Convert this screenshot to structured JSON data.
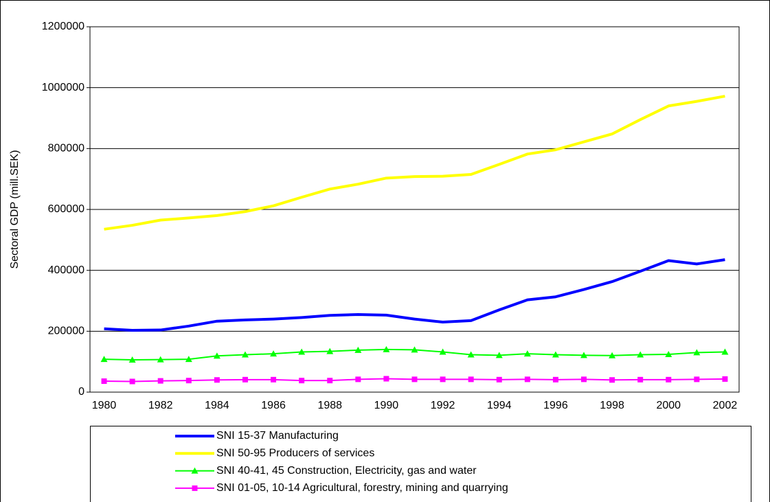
{
  "chart_data": {
    "type": "line",
    "y_label": "Sectoral GDP (mill.SEK)",
    "categories": [
      "1980",
      null,
      "1982",
      null,
      "1984",
      null,
      "1986",
      null,
      "1988",
      null,
      "1990",
      null,
      "1992",
      null,
      "1994",
      null,
      "1996",
      null,
      "1998",
      null,
      "2000",
      null,
      "2002"
    ],
    "ylim": [
      0,
      1200000
    ],
    "yticks": [
      0,
      200000,
      400000,
      600000,
      800000,
      1000000,
      1200000
    ],
    "grid": true,
    "legend": "bottom",
    "series": [
      {
        "name": "SNI 15-37 Manufacturing",
        "color": "#0000ff",
        "line_width": 4,
        "marker": null,
        "values": [
          208000,
          203000,
          204000,
          217000,
          233000,
          237000,
          240000,
          245000,
          252000,
          255000,
          253000,
          240000,
          230000,
          235000,
          270000,
          303000,
          313000,
          337000,
          363000,
          397000,
          432000,
          421000,
          435000
        ]
      },
      {
        "name": "SNI 50-95 Producers of services",
        "color": "#ffff00",
        "line_width": 4,
        "marker": null,
        "values": [
          535000,
          548000,
          565000,
          572000,
          580000,
          593000,
          612000,
          640000,
          667000,
          683000,
          703000,
          708000,
          709000,
          715000,
          748000,
          782000,
          796000,
          822000,
          848000,
          895000,
          940000,
          955000,
          972000
        ]
      },
      {
        "name": "SNI 40-41, 45 Construction, Electricity, gas and water",
        "color": "#00ff00",
        "line_width": 2,
        "marker": "triangle",
        "values": [
          108000,
          106000,
          107000,
          108000,
          119000,
          123000,
          126000,
          132000,
          134000,
          138000,
          140000,
          139000,
          132000,
          123000,
          121000,
          126000,
          123000,
          121000,
          120000,
          123000,
          124000,
          130000,
          132000
        ]
      },
      {
        "name": "SNI 01-05, 10-14 Agricultural, forestry, mining and quarrying",
        "color": "#ff00ff",
        "line_width": 2,
        "marker": "square",
        "values": [
          36000,
          35000,
          37000,
          38000,
          40000,
          41000,
          41000,
          38000,
          38000,
          42000,
          44000,
          42000,
          42000,
          42000,
          41000,
          42000,
          41000,
          42000,
          40000,
          41000,
          41000,
          42000,
          43000
        ]
      }
    ]
  }
}
